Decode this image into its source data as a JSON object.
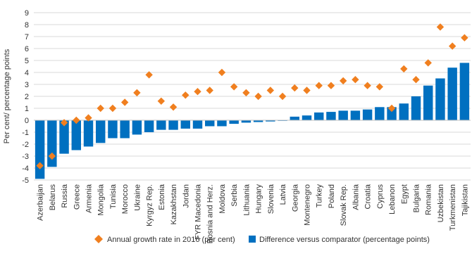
{
  "chart_data": {
    "type": "bar",
    "ylabel": "Per cent/ percentage points",
    "ylim": [
      -5,
      9
    ],
    "yticks": [
      -5,
      -4,
      -3,
      -2,
      -1,
      0,
      1,
      2,
      3,
      4,
      5,
      6,
      7,
      8,
      9
    ],
    "grid": true,
    "legend_position": "bottom",
    "categories": [
      "Azerbaijan",
      "Belarus",
      "Russia",
      "Greece",
      "Armenia",
      "Mongolia",
      "Tunisia",
      "Morocco",
      "Ukraine",
      "Kyrgyz Rep.",
      "Estonia",
      "Kazakhstan",
      "Jordan",
      "FYR Macedonia",
      "Bosnia and Herz.",
      "Moldova",
      "Serbia",
      "Lithuania",
      "Hungary",
      "Slovenia",
      "Latvia",
      "Georgia",
      "Montenegro",
      "Turkey",
      "Poland",
      "Slovak Rep.",
      "Albania",
      "Croatia",
      "Cyprus",
      "Lebanon",
      "Egypt",
      "Bulgaria",
      "Romania",
      "Uzbekistan",
      "Turkmenistan",
      "Tajikistan"
    ],
    "series": [
      {
        "name": "Difference versus comparator (percentage points)",
        "type": "bar",
        "color": "#0070c0",
        "values": [
          -4.9,
          -3.9,
          -2.8,
          -2.5,
          -2.2,
          -1.9,
          -1.5,
          -1.5,
          -1.2,
          -1.0,
          -0.8,
          -0.8,
          -0.7,
          -0.7,
          -0.5,
          -0.5,
          -0.3,
          -0.2,
          -0.15,
          -0.1,
          -0.05,
          0.3,
          0.4,
          0.65,
          0.7,
          0.8,
          0.8,
          0.9,
          1.1,
          1.1,
          1.4,
          2.0,
          2.9,
          3.5,
          4.4,
          4.8
        ]
      },
      {
        "name": "Annual growth rate in 2016 (per cent)",
        "type": "scatter",
        "marker": "diamond",
        "color": "#f07f1f",
        "values": [
          -3.8,
          -3.0,
          -0.2,
          0.0,
          0.2,
          1.0,
          1.0,
          1.5,
          2.3,
          3.8,
          1.6,
          1.1,
          2.1,
          2.4,
          2.5,
          4.0,
          2.8,
          2.3,
          2.0,
          2.5,
          2.0,
          2.7,
          2.5,
          2.9,
          2.9,
          3.3,
          3.4,
          2.9,
          2.8,
          1.0,
          4.3,
          3.4,
          4.8,
          7.8,
          6.2,
          6.9
        ]
      }
    ],
    "legend": [
      {
        "label": "Annual growth rate in 2016 (per cent)",
        "marker": "diamond",
        "color": "#f07f1f"
      },
      {
        "label": "Difference versus comparator (percentage points)",
        "marker": "square",
        "color": "#0070c0"
      }
    ]
  }
}
